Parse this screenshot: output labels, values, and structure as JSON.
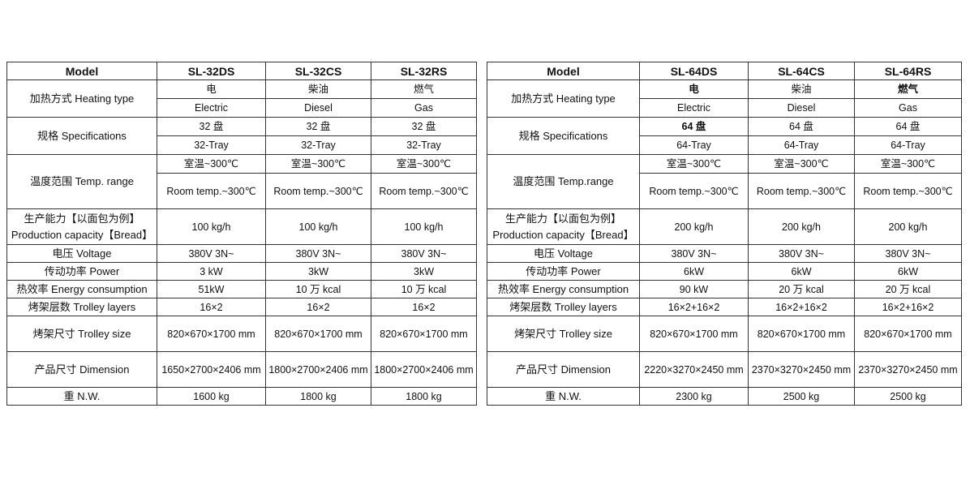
{
  "tables": [
    {
      "header": [
        "Model",
        "SL-32DS",
        "SL-32CS",
        "SL-32RS"
      ],
      "rows": [
        {
          "label": "加热方式 Heating type",
          "split": true,
          "cells": [
            [
              "电",
              "Electric"
            ],
            [
              "柴油",
              "Diesel"
            ],
            [
              "燃气",
              "Gas"
            ]
          ]
        },
        {
          "label": "规格 Specifications",
          "split": true,
          "cells": [
            [
              "32 盘",
              "32-Tray"
            ],
            [
              "32 盘",
              "32-Tray"
            ],
            [
              "32 盘",
              "32-Tray"
            ]
          ]
        },
        {
          "label": "温度范围 Temp. range",
          "split": true,
          "tall": true,
          "cells": [
            [
              "室温~300℃",
              "Room temp.~300℃"
            ],
            [
              "室温~300℃",
              "Room temp.~300℃"
            ],
            [
              "室温~300℃",
              "Room temp.~300℃"
            ]
          ]
        },
        {
          "label": "生产能力【以面包为例】Production capacity【Bread】",
          "double": true,
          "cells": [
            "100 kg/h",
            "100 kg/h",
            "100 kg/h"
          ]
        },
        {
          "label": "电压 Voltage",
          "cells": [
            "380V 3N~",
            "380V 3N~",
            "380V 3N~"
          ]
        },
        {
          "label": "传动功率 Power",
          "cells": [
            "3 kW",
            "3kW",
            "3kW"
          ]
        },
        {
          "label": "热效率 Energy consumption",
          "cells": [
            "51kW",
            "10 万 kcal",
            "10 万 kcal"
          ]
        },
        {
          "label": "烤架层数 Trolley layers",
          "cells": [
            "16×2",
            "16×2",
            "16×2"
          ]
        },
        {
          "label": "烤架尺寸 Trolley size",
          "double": true,
          "cells": [
            "820×670×1700 mm",
            "820×670×1700 mm",
            "820×670×1700 mm"
          ]
        },
        {
          "label": "产品尺寸 Dimension",
          "double": true,
          "cells": [
            "1650×2700×2406 mm",
            "1800×2700×2406 mm",
            "1800×2700×2406 mm"
          ]
        },
        {
          "label": "重 N.W.",
          "cells": [
            "1600 kg",
            "1800 kg",
            "1800 kg"
          ]
        }
      ]
    },
    {
      "header": [
        "Model",
        "SL-64DS",
        "SL-64CS",
        "SL-64RS"
      ],
      "rows": [
        {
          "label": "加热方式 Heating type",
          "split": true,
          "bold": [
            "0-0",
            "2-0"
          ],
          "cells": [
            [
              "电",
              "Electric"
            ],
            [
              "柴油",
              "Diesel"
            ],
            [
              "燃气",
              "Gas"
            ]
          ]
        },
        {
          "label": "规格 Specifications",
          "split": true,
          "bold": [
            "0-0"
          ],
          "cells": [
            [
              "64 盘",
              "64-Tray"
            ],
            [
              "64 盘",
              "64-Tray"
            ],
            [
              "64 盘",
              "64-Tray"
            ]
          ]
        },
        {
          "label": "温度范围 Temp.range",
          "split": true,
          "tall": true,
          "cells": [
            [
              "室温~300℃",
              "Room temp.~300℃"
            ],
            [
              "室温~300℃",
              "Room temp.~300℃"
            ],
            [
              "室温~300℃",
              "Room temp.~300℃"
            ]
          ]
        },
        {
          "label": "生产能力【以面包为例】Production capacity【Bread】",
          "double": true,
          "cells": [
            "200 kg/h",
            "200 kg/h",
            "200 kg/h"
          ]
        },
        {
          "label": "电压 Voltage",
          "cells": [
            "380V 3N~",
            "380V 3N~",
            "380V 3N~"
          ]
        },
        {
          "label": "传动功率 Power",
          "cells": [
            "6kW",
            "6kW",
            "6kW"
          ]
        },
        {
          "label": "热效率 Energy consumption",
          "cells": [
            "90 kW",
            "20 万 kcal",
            "20 万 kcal"
          ]
        },
        {
          "label": "烤架层数 Trolley layers",
          "cells": [
            "16×2+16×2",
            "16×2+16×2",
            "16×2+16×2"
          ]
        },
        {
          "label": "烤架尺寸 Trolley size",
          "double": true,
          "cells": [
            "820×670×1700 mm",
            "820×670×1700 mm",
            "820×670×1700 mm"
          ]
        },
        {
          "label": "产品尺寸 Dimension",
          "double": true,
          "cells": [
            "2220×3270×2450 mm",
            "2370×3270×2450 mm",
            "2370×3270×2450 mm"
          ]
        },
        {
          "label": "重 N.W.",
          "cells": [
            "2300 kg",
            "2500 kg",
            "2500 kg"
          ]
        }
      ]
    }
  ]
}
